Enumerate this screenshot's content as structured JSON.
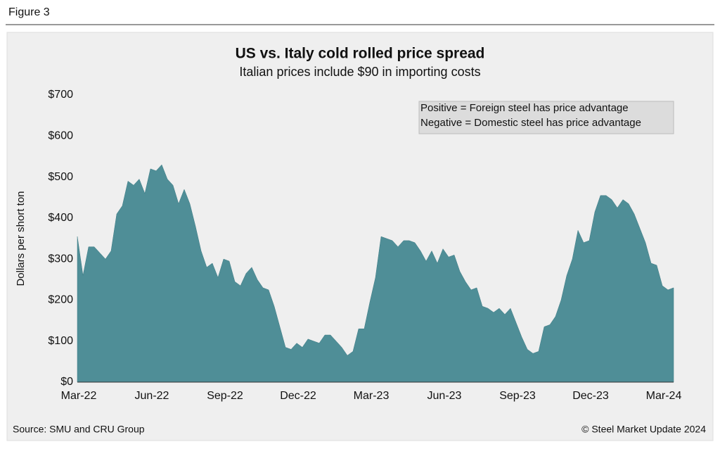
{
  "figure_label": "Figure 3",
  "source": "Source: SMU and CRU Group",
  "copyright": "© Steel Market Update 2024",
  "chart_data": {
    "type": "area",
    "title": "US vs. Italy cold rolled price spread",
    "subtitle": "Italian prices include $90 in importing costs",
    "y_label": "Dollars per short ton",
    "annotation": [
      "Positive = Foreign steel has price advantage",
      "Negative = Domestic steel has price advantage"
    ],
    "color": "#4f8e97",
    "categories": [
      "Mar-22",
      null,
      null,
      null,
      null,
      null,
      null,
      null,
      null,
      null,
      null,
      null,
      null,
      "Jun-22",
      null,
      null,
      null,
      null,
      null,
      null,
      null,
      null,
      null,
      null,
      null,
      null,
      "Sep-22",
      null,
      null,
      null,
      null,
      null,
      null,
      null,
      null,
      null,
      null,
      null,
      null,
      "Dec-22",
      null,
      null,
      null,
      null,
      null,
      null,
      null,
      null,
      null,
      null,
      null,
      null,
      "Mar-23",
      null,
      null,
      null,
      null,
      null,
      null,
      null,
      null,
      null,
      null,
      null,
      null,
      "Jun-23",
      null,
      null,
      null,
      null,
      null,
      null,
      null,
      null,
      null,
      null,
      null,
      null,
      "Sep-23",
      null,
      null,
      null,
      null,
      null,
      null,
      null,
      null,
      null,
      null,
      null,
      null,
      "Dec-23",
      null,
      null,
      null,
      null,
      null,
      null,
      null,
      null,
      null,
      null,
      null,
      null,
      "Mar-24",
      null,
      null
    ],
    "values": [
      355,
      260,
      330,
      330,
      315,
      300,
      320,
      410,
      430,
      490,
      480,
      495,
      460,
      520,
      515,
      530,
      495,
      480,
      435,
      470,
      435,
      380,
      320,
      280,
      290,
      255,
      300,
      295,
      245,
      235,
      265,
      280,
      250,
      230,
      225,
      185,
      135,
      85,
      80,
      95,
      85,
      105,
      100,
      95,
      115,
      115,
      100,
      85,
      65,
      75,
      130,
      130,
      195,
      255,
      355,
      350,
      345,
      330,
      345,
      345,
      340,
      320,
      295,
      320,
      290,
      325,
      305,
      310,
      270,
      245,
      225,
      230,
      185,
      180,
      170,
      180,
      165,
      180,
      145,
      110,
      80,
      70,
      75,
      135,
      140,
      160,
      200,
      260,
      300,
      370,
      340,
      345,
      415,
      455,
      455,
      445,
      425,
      445,
      435,
      410,
      375,
      340,
      290,
      285,
      235,
      225,
      230
    ],
    "ylim": [
      0,
      700
    ],
    "yticks": [
      {
        "value": 0,
        "label": "$0"
      },
      {
        "value": 100,
        "label": "$100"
      },
      {
        "value": 200,
        "label": "$200"
      },
      {
        "value": 300,
        "label": "$300"
      },
      {
        "value": 400,
        "label": "$400"
      },
      {
        "value": 500,
        "label": "$500"
      },
      {
        "value": 600,
        "label": "$600"
      },
      {
        "value": 700,
        "label": "$700"
      }
    ],
    "grid": false
  }
}
